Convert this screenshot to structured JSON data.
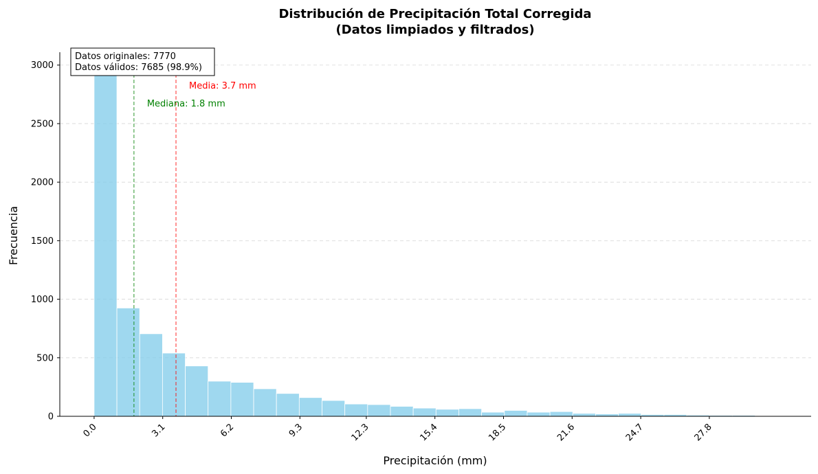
{
  "chart_data": {
    "type": "bar",
    "title_lines": [
      "Distribución de Precipitación Total Corregida",
      "(Datos limpiados y filtrados)"
    ],
    "xlabel": "Precipitación (mm)",
    "ylabel": "Frecuencia",
    "xlim": [
      -1.55,
      32.4
    ],
    "ylim": [
      0,
      3110
    ],
    "x_ticks": [
      "0.0",
      "3.1",
      "6.2",
      "9.3",
      "12.3",
      "15.4",
      "18.5",
      "21.6",
      "24.7",
      "27.8"
    ],
    "x_tick_values": [
      0.0,
      3.1,
      6.2,
      9.3,
      12.3,
      15.4,
      18.5,
      21.6,
      24.7,
      27.8
    ],
    "y_ticks": [
      0,
      500,
      1000,
      1500,
      2000,
      2500,
      3000
    ],
    "bin_start": 0.0,
    "bin_width": 1.03,
    "values": [
      2950,
      925,
      705,
      540,
      430,
      300,
      290,
      235,
      195,
      160,
      135,
      105,
      100,
      85,
      70,
      60,
      65,
      35,
      50,
      35,
      40,
      25,
      20,
      25,
      15,
      15,
      10,
      8,
      8,
      5
    ],
    "bar_color": "#87ceeb",
    "grid": "y-dashed",
    "mean_line": {
      "value": 3.7,
      "label": "Media: 3.7 mm",
      "color": "#ff0000"
    },
    "median_line": {
      "value": 1.8,
      "label": "Mediana: 1.8 mm",
      "color": "#008000"
    },
    "info_box": [
      "Datos originales: 7770",
      "Datos válidos: 7685 (98.9%)"
    ],
    "info_box_placement": "top-left"
  }
}
